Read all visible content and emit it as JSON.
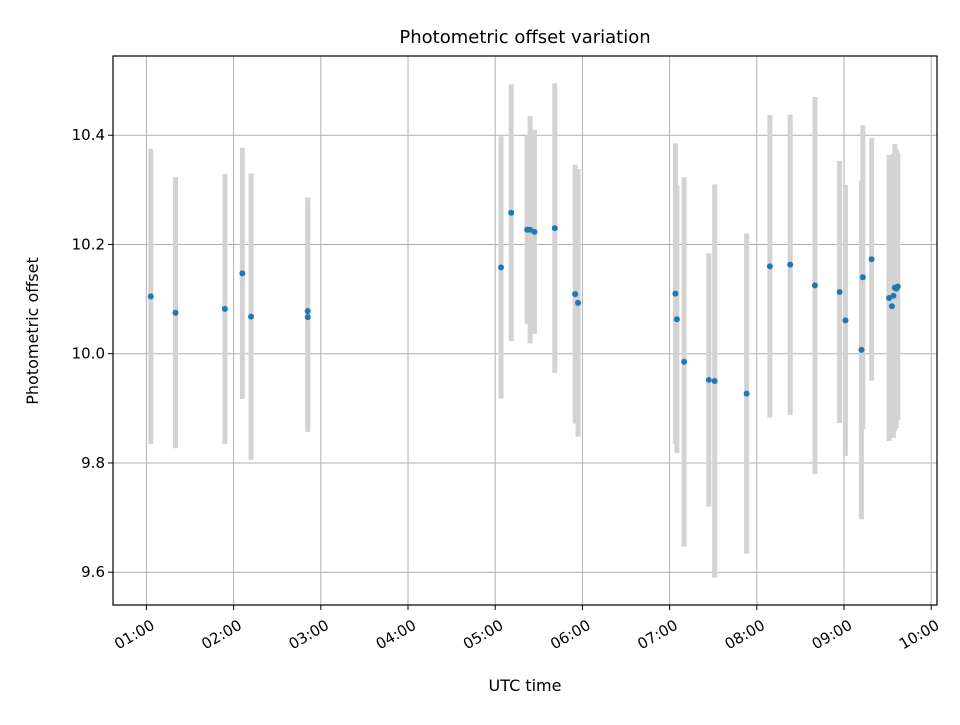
{
  "chart_data": {
    "type": "scatter",
    "title": "Photometric offset variation",
    "xlabel": "UTC time",
    "ylabel": "Photometric offset",
    "x_axis_type": "time",
    "xlim": [
      "00:37",
      "10:04"
    ],
    "ylim": [
      9.54,
      10.545
    ],
    "x_ticks": [
      "01:00",
      "02:00",
      "03:00",
      "04:00",
      "05:00",
      "06:00",
      "07:00",
      "08:00",
      "09:00",
      "10:00"
    ],
    "y_ticks": [
      9.6,
      9.8,
      10.0,
      10.2,
      10.4
    ],
    "y_tick_labels": [
      "9.6",
      "9.8",
      "10.0",
      "10.2",
      "10.4"
    ],
    "grid": true,
    "errorbar_color": "#d3d3d3",
    "point_color": "#1f77b4",
    "points": [
      {
        "time": "01:03",
        "y": 10.105,
        "err": 0.27
      },
      {
        "time": "01:20",
        "y": 10.075,
        "err": 0.248
      },
      {
        "time": "01:54",
        "y": 10.082,
        "err": 0.247
      },
      {
        "time": "02:06",
        "y": 10.147,
        "err": 0.23
      },
      {
        "time": "02:12",
        "y": 10.068,
        "err": 0.262
      },
      {
        "time": "02:51",
        "y": 10.078,
        "err": 0.208
      },
      {
        "time": "02:51",
        "y": 10.067,
        "err": 0.21
      },
      {
        "time": "05:04",
        "y": 10.158,
        "err": 0.24
      },
      {
        "time": "05:11",
        "y": 10.258,
        "err": 0.235
      },
      {
        "time": "05:22",
        "y": 10.227,
        "err": 0.173
      },
      {
        "time": "05:24",
        "y": 10.227,
        "err": 0.208
      },
      {
        "time": "05:27",
        "y": 10.223,
        "err": 0.187
      },
      {
        "time": "05:41",
        "y": 10.23,
        "err": 0.265
      },
      {
        "time": "05:55",
        "y": 10.109,
        "err": 0.237
      },
      {
        "time": "05:57",
        "y": 10.093,
        "err": 0.245
      },
      {
        "time": "07:04",
        "y": 10.11,
        "err": 0.275
      },
      {
        "time": "07:05",
        "y": 10.063,
        "err": 0.245
      },
      {
        "time": "07:10",
        "y": 9.985,
        "err": 0.338
      },
      {
        "time": "07:27",
        "y": 9.952,
        "err": 0.232
      },
      {
        "time": "07:31",
        "y": 9.95,
        "err": 0.36
      },
      {
        "time": "07:53",
        "y": 9.927,
        "err": 0.293
      },
      {
        "time": "08:09",
        "y": 10.16,
        "err": 0.277
      },
      {
        "time": "08:23",
        "y": 10.163,
        "err": 0.275
      },
      {
        "time": "08:40",
        "y": 10.125,
        "err": 0.345
      },
      {
        "time": "08:57",
        "y": 10.113,
        "err": 0.24
      },
      {
        "time": "09:01",
        "y": 10.061,
        "err": 0.248
      },
      {
        "time": "09:12",
        "y": 10.007,
        "err": 0.31
      },
      {
        "time": "09:13",
        "y": 10.14,
        "err": 0.278
      },
      {
        "time": "09:19",
        "y": 10.173,
        "err": 0.222
      },
      {
        "time": "09:31",
        "y": 10.102,
        "err": 0.262
      },
      {
        "time": "09:33",
        "y": 10.087,
        "err": 0.232
      },
      {
        "time": "09:34",
        "y": 10.106,
        "err": 0.26
      },
      {
        "time": "09:35",
        "y": 10.121,
        "err": 0.263
      },
      {
        "time": "09:36",
        "y": 10.119,
        "err": 0.255
      },
      {
        "time": "09:37",
        "y": 10.123,
        "err": 0.245
      }
    ]
  }
}
